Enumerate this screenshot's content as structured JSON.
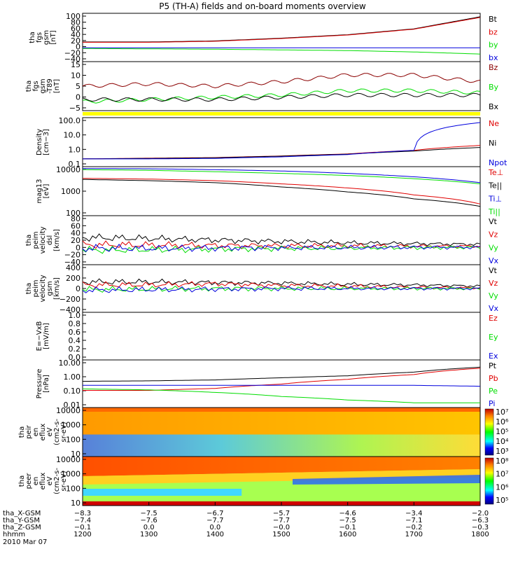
{
  "title": "P5 (TH-A) fields and on-board moments overview",
  "date_label": "2010 Mar 07",
  "colors": {
    "black": "#000000",
    "red": "#e00000",
    "green": "#00dd00",
    "blue": "#0000dd",
    "darkred": "#8b0000",
    "yellow": "#ffff00"
  },
  "panels": [
    {
      "id": "fgs_gsm",
      "ylabel": [
        "tha",
        "fgs",
        "gsm",
        "[nT]"
      ],
      "scale": "linear",
      "ylim": [
        -40,
        100
      ],
      "ticks": [
        "100",
        "80",
        "60",
        "40",
        "20",
        "0",
        "−20",
        "−40"
      ],
      "legend": [
        {
          "name": "Bt",
          "color": "#000000"
        },
        {
          "name": "bz",
          "color": "#e00000"
        },
        {
          "name": "by",
          "color": "#00dd00"
        },
        {
          "name": "bx",
          "color": "#0000dd"
        }
      ]
    },
    {
      "id": "fgs_dsl",
      "ylabel": [
        "tha",
        "fgs",
        "gsm",
        "-T89",
        "[nT]"
      ],
      "scale": "linear",
      "ylim": [
        -7,
        15
      ],
      "ticks": [
        "15",
        "10",
        "5",
        "0",
        "−5"
      ],
      "legend": [
        {
          "name": "Bz",
          "color": "#8b0000"
        },
        {
          "name": "By",
          "color": "#00dd00"
        },
        {
          "name": "Bx",
          "color": "#000000"
        }
      ]
    },
    {
      "id": "density",
      "ylabel": [
        "Density",
        "[cm−3]"
      ],
      "scale": "log",
      "ylim": [
        0.1,
        100
      ],
      "ticks": [
        "100.0",
        "10.0",
        "1.0",
        "0.1"
      ],
      "legend": [
        {
          "name": "Ne",
          "color": "#e00000"
        },
        {
          "name": "Ni",
          "color": "#000000"
        },
        {
          "name": "Npot",
          "color": "#0000dd"
        }
      ]
    },
    {
      "id": "temperature",
      "ylabel": [
        "mag13",
        "[eV]"
      ],
      "scale": "log",
      "ylim": [
        30,
        10000
      ],
      "ticks": [
        "10000",
        "1000",
        "100"
      ],
      "legend": [
        {
          "name": "Te⊥",
          "color": "#e00000"
        },
        {
          "name": "Te||",
          "color": "#000000"
        },
        {
          "name": "Ti⊥",
          "color": "#0000dd"
        },
        {
          "name": "Ti||",
          "color": "#00dd00"
        }
      ]
    },
    {
      "id": "velocity_dsl",
      "ylabel": [
        "tha",
        "peim",
        "velocity",
        "dsl",
        "[km/s]"
      ],
      "scale": "linear",
      "ylim": [
        -50,
        85
      ],
      "ticks": [
        "80",
        "60",
        "40",
        "20",
        "0",
        "−20",
        "−40"
      ],
      "legend": [
        {
          "name": "Vt",
          "color": "#000000"
        },
        {
          "name": "Vz",
          "color": "#e00000"
        },
        {
          "name": "Vy",
          "color": "#00dd00"
        },
        {
          "name": "Vx",
          "color": "#0000dd"
        }
      ]
    },
    {
      "id": "velocity_gsm",
      "ylabel": [
        "tha",
        "peim",
        "velocity",
        "gsm",
        "[km/s]"
      ],
      "scale": "linear",
      "ylim": [
        -400,
        400
      ],
      "ticks": [
        "400",
        "200",
        "0",
        "−200",
        "−400"
      ],
      "legend": [
        {
          "name": "Vt",
          "color": "#000000"
        },
        {
          "name": "Vz",
          "color": "#e00000"
        },
        {
          "name": "Vy",
          "color": "#00dd00"
        },
        {
          "name": "Vx",
          "color": "#0000dd"
        }
      ]
    },
    {
      "id": "efield",
      "ylabel": [
        "E=−VxB",
        "[mV/m]"
      ],
      "scale": "linear",
      "ylim": [
        -1,
        1
      ],
      "ticks": [
        "1.0",
        "0.8",
        "0.6",
        "0.4",
        "0.2",
        "0.0"
      ],
      "legend": [
        {
          "name": "Ez",
          "color": "#e00000"
        },
        {
          "name": "Ey",
          "color": "#00dd00"
        },
        {
          "name": "Ex",
          "color": "#0000dd"
        }
      ]
    },
    {
      "id": "pressure",
      "ylabel": [
        "Pressure",
        "[nPa]"
      ],
      "scale": "log",
      "ylim": [
        0.01,
        10
      ],
      "ticks": [
        "10.00",
        "1.00",
        "0.10",
        "0.01"
      ],
      "legend": [
        {
          "name": "Pt",
          "color": "#000000"
        },
        {
          "name": "Pb",
          "color": "#e00000"
        },
        {
          "name": "Pe",
          "color": "#00dd00"
        },
        {
          "name": "Pi",
          "color": "#0000dd"
        }
      ]
    },
    {
      "id": "ion_spec",
      "ylabel": [
        "tha",
        "peir",
        "en",
        "eflux",
        "eV",
        "(cm2-s-",
        "sr-eV)"
      ],
      "scale": "log",
      "ylim": [
        10,
        20000
      ],
      "ticks": [
        "10000",
        "1000",
        "100",
        "10"
      ],
      "colorbar": [
        "10⁷",
        "10⁶",
        "10⁵",
        "10⁴",
        "10³"
      ]
    },
    {
      "id": "elec_spec",
      "ylabel": [
        "tha",
        "peer",
        "en",
        "eflux",
        "eV",
        "(cm2-s-",
        "sr-eV)"
      ],
      "scale": "log",
      "ylim": [
        8,
        20000
      ],
      "ticks": [
        "10000",
        "1000",
        "100",
        "10"
      ],
      "colorbar": [
        "10⁸",
        "10⁷",
        "10⁶",
        "10⁵"
      ]
    }
  ],
  "xaxis": {
    "rows": [
      {
        "label": "tha_X-GSM",
        "values": [
          "−8.3",
          "−7.5",
          "−6.7",
          "−5.7",
          "−4.6",
          "−3.4",
          "−2.0"
        ]
      },
      {
        "label": "tha_Y-GSM",
        "values": [
          "−7.4",
          "−7.6",
          "−7.7",
          "−7.7",
          "−7.5",
          "−7.1",
          "−6.3"
        ]
      },
      {
        "label": "tha_Z-GSM",
        "values": [
          "−0.1",
          "0.0",
          "0.0",
          "−0.0",
          "−0.1",
          "−0.2",
          "−0.3"
        ]
      },
      {
        "label": "hhmm",
        "values": [
          "1200",
          "1300",
          "1400",
          "1500",
          "1600",
          "1700",
          "1800"
        ]
      }
    ]
  },
  "chart_data": {
    "type": "line",
    "title": "P5 (TH-A) fields and on-board moments overview",
    "x": [
      1200,
      1300,
      1400,
      1500,
      1600,
      1700,
      1800
    ],
    "series": [
      {
        "panel": "fgs_gsm",
        "name": "Bt",
        "values": [
          17,
          17,
          20,
          28,
          38,
          55,
          90
        ]
      },
      {
        "panel": "fgs_gsm",
        "name": "bz",
        "values": [
          16,
          16,
          19,
          27,
          37,
          54,
          88
        ]
      },
      {
        "panel": "fgs_gsm",
        "name": "by",
        "values": [
          -2,
          -3,
          -4,
          -6,
          -8,
          -12,
          -18
        ]
      },
      {
        "panel": "fgs_gsm",
        "name": "bx",
        "values": [
          0,
          0,
          0,
          0,
          0,
          0,
          0
        ]
      },
      {
        "panel": "fgs_dsl",
        "name": "Bz",
        "values": [
          4,
          5,
          4,
          6,
          9,
          9,
          6
        ]
      },
      {
        "panel": "fgs_dsl",
        "name": "By",
        "values": [
          -3,
          -2,
          -1,
          0,
          2,
          2,
          1
        ]
      },
      {
        "panel": "fgs_dsl",
        "name": "Bx",
        "values": [
          -2,
          -2,
          -2,
          -1,
          0,
          0,
          0
        ]
      },
      {
        "panel": "density",
        "name": "Ne",
        "values": [
          0.3,
          0.33,
          0.36,
          0.45,
          0.6,
          1.0,
          2.0
        ]
      },
      {
        "panel": "density",
        "name": "Ni",
        "values": [
          0.3,
          0.32,
          0.35,
          0.44,
          0.58,
          0.9,
          1.5
        ]
      },
      {
        "panel": "density",
        "name": "Npot",
        "values": [
          0.3,
          0.3,
          0.32,
          0.4,
          0.55,
          1.0,
          50
        ]
      },
      {
        "panel": "temperature",
        "name": "Te⊥",
        "values": [
          2500,
          2300,
          1900,
          1300,
          800,
          350,
          120
        ]
      },
      {
        "panel": "temperature",
        "name": "Te||",
        "values": [
          2200,
          1900,
          1500,
          900,
          500,
          220,
          90
        ]
      },
      {
        "panel": "temperature",
        "name": "Ti⊥",
        "values": [
          8000,
          7800,
          7000,
          6000,
          4500,
          3000,
          1500
        ]
      },
      {
        "panel": "temperature",
        "name": "Ti||",
        "values": [
          7000,
          6500,
          5500,
          4500,
          3500,
          2400,
          1300
        ]
      },
      {
        "panel": "velocity_dsl",
        "name": "Vt",
        "values": [
          25,
          22,
          18,
          14,
          10,
          8,
          6
        ]
      },
      {
        "panel": "velocity_dsl",
        "name": "Vz",
        "values": [
          5,
          4,
          3,
          2,
          2,
          1,
          1
        ]
      },
      {
        "panel": "velocity_dsl",
        "name": "Vy",
        "values": [
          -10,
          -9,
          -7,
          -5,
          -4,
          -3,
          -2
        ]
      },
      {
        "panel": "velocity_dsl",
        "name": "Vx",
        "values": [
          -5,
          -5,
          -4,
          -3,
          -3,
          -2,
          -2
        ]
      },
      {
        "panel": "velocity_gsm",
        "name": "Vt",
        "values": [
          110,
          110,
          100,
          90,
          70,
          60,
          40
        ]
      },
      {
        "panel": "velocity_gsm",
        "name": "Vz",
        "values": [
          60,
          60,
          80,
          50,
          40,
          20,
          10
        ]
      },
      {
        "panel": "velocity_gsm",
        "name": "Vy",
        "values": [
          -20,
          -10,
          0,
          0,
          0,
          0,
          0
        ]
      },
      {
        "panel": "velocity_gsm",
        "name": "Vx",
        "values": [
          -30,
          -20,
          -10,
          0,
          0,
          0,
          0
        ]
      },
      {
        "panel": "pressure",
        "name": "Pt",
        "values": [
          0.45,
          0.48,
          0.55,
          0.75,
          1.0,
          1.7,
          3.5
        ]
      },
      {
        "panel": "pressure",
        "name": "Pb",
        "values": [
          0.12,
          0.12,
          0.16,
          0.3,
          0.6,
          1.2,
          3.0
        ]
      },
      {
        "panel": "pressure",
        "name": "Pe",
        "values": [
          0.15,
          0.13,
          0.09,
          0.05,
          0.03,
          0.02,
          0.02
        ]
      },
      {
        "panel": "pressure",
        "name": "Pi",
        "values": [
          0.25,
          0.25,
          0.25,
          0.25,
          0.25,
          0.25,
          0.22
        ]
      }
    ]
  }
}
